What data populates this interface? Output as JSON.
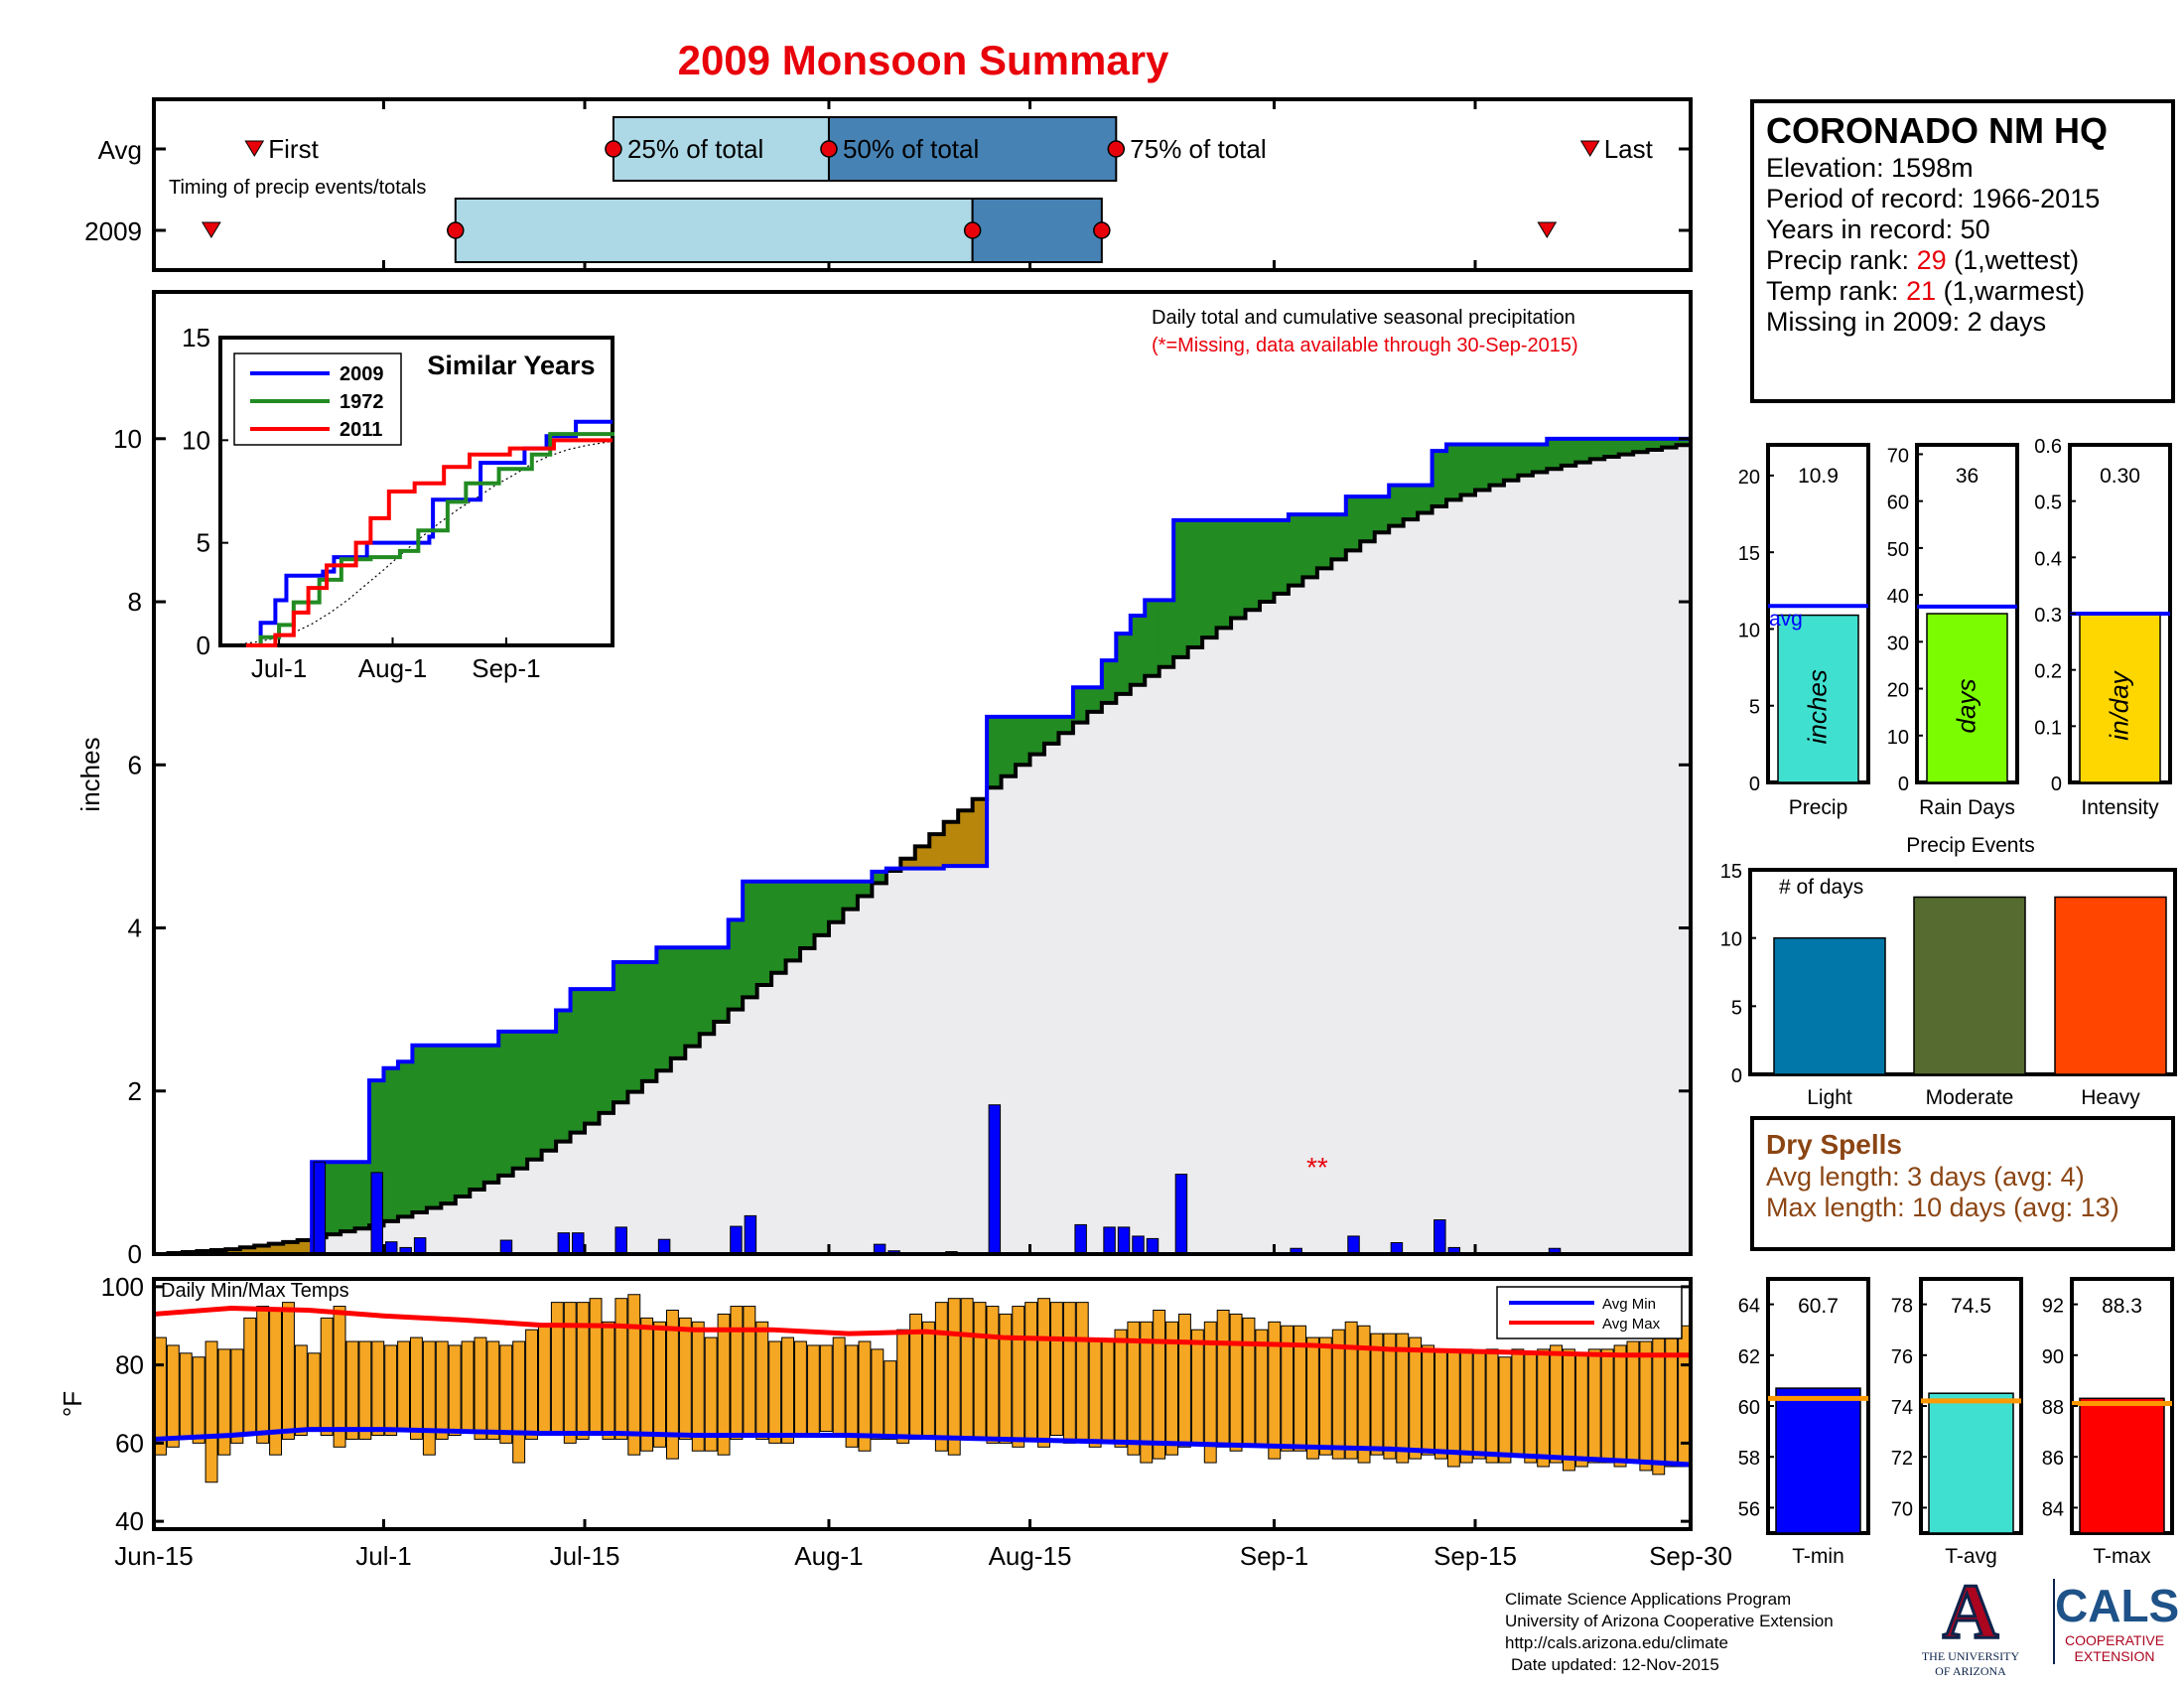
{
  "title": "2009 Monsoon Summary",
  "colors": {
    "title": "#e8000b",
    "precip_bar": "#0000ff",
    "cum_2009": "#0000ff",
    "cum_avg": "#000000",
    "above_avg": "#228b22",
    "below_avg": "#b8860b",
    "background_area": "#ecebee",
    "temp_bar": "#f5a623",
    "avg_min_line": "#0000ff",
    "avg_max_line": "#ff0000",
    "timing_light": "#add8e6",
    "timing_dark": "#4682b4"
  },
  "station": {
    "name": "CORONADO NM HQ",
    "elevation": "Elevation: 1598m",
    "period": "Period of record: 1966-2015",
    "years": "Years in record: 50",
    "precip_rank_prefix": "Precip rank: ",
    "precip_rank_value": "29",
    "precip_rank_suffix": " (1,wettest)",
    "temp_rank_prefix": "Temp rank: ",
    "temp_rank_value": "21",
    "temp_rank_suffix": " (1,warmest)",
    "missing": "Missing in 2009: 2 days"
  },
  "dry_spells": {
    "title": "Dry Spells",
    "avg_length": "Avg length: 3 days (avg: 4)",
    "max_length": "Max length: 10 days (avg: 13)"
  },
  "footer": {
    "line1": "Climate Science Applications Program",
    "line2": "University of Arizona Cooperative Extension",
    "line3": "http://cals.arizona.edu/climate",
    "line4": "Date updated: 12-Nov-2015"
  },
  "logos": {
    "ua_letter": "A",
    "ua_line1": "THE UNIVERSITY",
    "ua_line2": "OF ARIZONA",
    "cals": "CALS",
    "cals_line1": "COOPERATIVE",
    "cals_line2": "EXTENSION"
  },
  "chart_data": [
    {
      "id": "timing",
      "type": "timeline",
      "title": "Timing of precip events/totals",
      "row_labels": [
        "Avg",
        "2009"
      ],
      "labels": {
        "first": "First",
        "q25": "25% of total",
        "q50": "50% of total",
        "q75": "75% of total",
        "last": "Last"
      },
      "avg": {
        "first": "Jun-22",
        "q25": "Jul-17",
        "q50": "Aug-1",
        "q75": "Aug-21",
        "last": "Sep-23"
      },
      "y2009": {
        "first": "Jun-19",
        "q25": "Jul-6",
        "q50": "Aug-11",
        "q75": "Aug-20",
        "last": "Sep-20"
      }
    },
    {
      "id": "cumulative",
      "type": "area",
      "annotation_title": "Daily total and cumulative seasonal precipitation",
      "annotation_missing": "(*=Missing, data available through 30-Sep-2015)",
      "missing_marker": "**",
      "ylabel": "inches",
      "ylim": [
        0,
        11.8
      ],
      "yticks": [
        0,
        2,
        4,
        6,
        8,
        10
      ],
      "xticks": [
        "Jun-15",
        "Jul-1",
        "Jul-15",
        "Aug-1",
        "Aug-15",
        "Sep-1",
        "Sep-15",
        "Sep-30"
      ],
      "daily_precip": [
        {
          "date": "Jun-26",
          "value": 1.13
        },
        {
          "date": "Jun-30",
          "value": 1.0
        },
        {
          "date": "Jul-1",
          "value": 0.15
        },
        {
          "date": "Jul-2",
          "value": 0.08
        },
        {
          "date": "Jul-3",
          "value": 0.2
        },
        {
          "date": "Jul-9",
          "value": 0.17
        },
        {
          "date": "Jul-13",
          "value": 0.26
        },
        {
          "date": "Jul-14",
          "value": 0.26
        },
        {
          "date": "Jul-17",
          "value": 0.33
        },
        {
          "date": "Jul-20",
          "value": 0.18
        },
        {
          "date": "Jul-25",
          "value": 0.34
        },
        {
          "date": "Jul-26",
          "value": 0.47
        },
        {
          "date": "Aug-4",
          "value": 0.12
        },
        {
          "date": "Aug-5",
          "value": 0.04
        },
        {
          "date": "Aug-9",
          "value": 0.03
        },
        {
          "date": "Aug-12",
          "value": 1.83
        },
        {
          "date": "Aug-18",
          "value": 0.36
        },
        {
          "date": "Aug-20",
          "value": 0.33
        },
        {
          "date": "Aug-21",
          "value": 0.33
        },
        {
          "date": "Aug-22",
          "value": 0.22
        },
        {
          "date": "Aug-23",
          "value": 0.19
        },
        {
          "date": "Aug-25",
          "value": 0.98
        },
        {
          "date": "Sep-2",
          "value": 0.07
        },
        {
          "date": "Sep-6",
          "value": 0.22
        },
        {
          "date": "Sep-9",
          "value": 0.14
        },
        {
          "date": "Sep-12",
          "value": 0.42
        },
        {
          "date": "Sep-13",
          "value": 0.08
        },
        {
          "date": "Sep-20",
          "value": 0.07
        }
      ],
      "missing_dates": [
        "Sep-4",
        "Sep-5"
      ],
      "avg_cumulative": [
        {
          "date": "Jun-15",
          "value": 0.0
        },
        {
          "date": "Jun-20",
          "value": 0.06
        },
        {
          "date": "Jun-25",
          "value": 0.17
        },
        {
          "date": "Jun-30",
          "value": 0.35
        },
        {
          "date": "Jul-5",
          "value": 0.62
        },
        {
          "date": "Jul-10",
          "value": 1.05
        },
        {
          "date": "Jul-15",
          "value": 1.6
        },
        {
          "date": "Jul-20",
          "value": 2.25
        },
        {
          "date": "Jul-25",
          "value": 3.0
        },
        {
          "date": "Jul-30",
          "value": 3.75
        },
        {
          "date": "Aug-4",
          "value": 4.55
        },
        {
          "date": "Aug-9",
          "value": 5.3
        },
        {
          "date": "Aug-14",
          "value": 6.0
        },
        {
          "date": "Aug-19",
          "value": 6.65
        },
        {
          "date": "Aug-24",
          "value": 7.2
        },
        {
          "date": "Aug-29",
          "value": 7.8
        },
        {
          "date": "Sep-3",
          "value": 8.3
        },
        {
          "date": "Sep-8",
          "value": 8.85
        },
        {
          "date": "Sep-13",
          "value": 9.25
        },
        {
          "date": "Sep-18",
          "value": 9.55
        },
        {
          "date": "Sep-23",
          "value": 9.75
        },
        {
          "date": "Sep-30",
          "value": 9.95
        }
      ]
    },
    {
      "id": "similar_years",
      "type": "line",
      "title": "Similar Years",
      "xticks": [
        "Jul-1",
        "Aug-1",
        "Sep-1"
      ],
      "yticks": [
        0,
        5,
        10,
        15
      ],
      "ylim": [
        0,
        15
      ],
      "series": [
        {
          "name": "2009",
          "color": "#0000ff",
          "points": [
            [
              "Jun-22",
              0
            ],
            [
              "Jun-26",
              1.1
            ],
            [
              "Jun-30",
              2.2
            ],
            [
              "Jul-3",
              3.4
            ],
            [
              "Jul-13",
              3.6
            ],
            [
              "Jul-16",
              4.3
            ],
            [
              "Jul-25",
              5.0
            ],
            [
              "Aug-11",
              5.3
            ],
            [
              "Aug-12",
              7.1
            ],
            [
              "Aug-25",
              8.9
            ],
            [
              "Sep-6",
              9.6
            ],
            [
              "Sep-12",
              10.2
            ],
            [
              "Sep-20",
              10.9
            ],
            [
              "Sep-30",
              10.9
            ]
          ]
        },
        {
          "name": "1972",
          "color": "#228b22",
          "points": [
            [
              "Jun-22",
              0
            ],
            [
              "Jun-26",
              0.4
            ],
            [
              "Jul-1",
              1.0
            ],
            [
              "Jul-5",
              2.1
            ],
            [
              "Jul-12",
              3.2
            ],
            [
              "Jul-18",
              4.2
            ],
            [
              "Jul-26",
              4.3
            ],
            [
              "Aug-3",
              4.6
            ],
            [
              "Aug-8",
              5.6
            ],
            [
              "Aug-16",
              7.0
            ],
            [
              "Aug-21",
              7.9
            ],
            [
              "Aug-30",
              8.6
            ],
            [
              "Sep-8",
              9.3
            ],
            [
              "Sep-13",
              10.3
            ],
            [
              "Sep-30",
              10.4
            ]
          ]
        },
        {
          "name": "2011",
          "color": "#ff0000",
          "points": [
            [
              "Jun-22",
              0
            ],
            [
              "Jun-30",
              0.5
            ],
            [
              "Jul-5",
              1.6
            ],
            [
              "Jul-9",
              2.8
            ],
            [
              "Jul-14",
              3.9
            ],
            [
              "Jul-22",
              5.0
            ],
            [
              "Jul-26",
              6.2
            ],
            [
              "Jul-31",
              7.5
            ],
            [
              "Aug-7",
              7.9
            ],
            [
              "Aug-15",
              8.7
            ],
            [
              "Aug-22",
              9.3
            ],
            [
              "Sep-2",
              9.6
            ],
            [
              "Sep-14",
              10.0
            ],
            [
              "Sep-30",
              10.0
            ]
          ]
        }
      ]
    },
    {
      "id": "stat_bars",
      "type": "bar",
      "avg_label": "avg",
      "panels": [
        {
          "label": "Precip",
          "unit": "inches",
          "value": 10.9,
          "display": "10.9",
          "avg": 11.5,
          "ylim": [
            0,
            22
          ],
          "yticks": [
            0,
            5,
            10,
            15,
            20
          ],
          "color": "#40e0d0"
        },
        {
          "label": "Rain Days",
          "unit": "days",
          "value": 36,
          "display": "36",
          "avg": 37.5,
          "ylim": [
            0,
            72
          ],
          "yticks": [
            0,
            10,
            20,
            30,
            40,
            50,
            60,
            70
          ],
          "color": "#7cfc00"
        },
        {
          "label": "Intensity",
          "unit": "in/day",
          "value": 0.3,
          "display": "0.30",
          "avg": 0.3,
          "ylim": [
            0,
            0.6
          ],
          "yticks": [
            0,
            0.1,
            0.2,
            0.3,
            0.4,
            0.5,
            0.6
          ],
          "color": "#ffd700"
        }
      ]
    },
    {
      "id": "precip_events",
      "type": "bar",
      "title": "Precip Events",
      "ylabel": "# of days",
      "ylim": [
        0,
        15
      ],
      "yticks": [
        0,
        5,
        10,
        15
      ],
      "categories": [
        "Light",
        "Moderate",
        "Heavy"
      ],
      "values": [
        10,
        13,
        13
      ],
      "colors": [
        "#0077a8",
        "#556b2f",
        "#ff4500"
      ]
    },
    {
      "id": "daily_temps",
      "type": "bar",
      "title": "Daily Min/Max Temps",
      "ylabel": "°F",
      "ylim": [
        38,
        102
      ],
      "yticks": [
        40,
        60,
        80,
        100
      ],
      "legend": [
        {
          "name": "Avg Min",
          "color": "#0000ff"
        },
        {
          "name": "Avg Max",
          "color": "#ff0000"
        }
      ],
      "tmax_1": [
        87,
        85,
        83,
        82,
        86,
        84,
        84,
        92,
        95,
        94,
        96,
        85,
        83,
        92,
        95,
        86,
        86,
        86,
        85,
        86,
        87,
        86,
        86,
        85,
        86,
        87,
        86,
        85,
        86,
        89,
        90,
        96,
        96,
        96,
        97,
        91,
        97,
        98,
        92,
        91,
        94,
        92,
        91,
        87,
        93,
        95,
        95,
        91,
        86,
        87,
        86,
        85,
        85,
        87,
        85,
        86,
        84,
        81,
        89,
        93
      ],
      "tmax_2": [
        91,
        96,
        97,
        97,
        96,
        95,
        93,
        95,
        96,
        97,
        96,
        96,
        96,
        86,
        86,
        89,
        91,
        91,
        94,
        91,
        93,
        89,
        91,
        94,
        93,
        92,
        89,
        91,
        90,
        90,
        87,
        87,
        89,
        91,
        90,
        88,
        88,
        88,
        87,
        85,
        84,
        84,
        84,
        83,
        84,
        82,
        84,
        83,
        84,
        85,
        84,
        83,
        84,
        84,
        85,
        86,
        86,
        88,
        88,
        90
      ],
      "tmin_1": [
        57,
        59,
        61,
        60,
        50,
        57,
        60,
        62,
        60,
        57,
        61,
        62,
        63,
        62,
        59,
        61,
        61,
        62,
        62,
        63,
        61,
        57,
        61,
        62,
        63,
        61,
        61,
        60,
        55,
        61,
        62,
        63,
        60,
        61,
        62,
        61,
        61,
        57,
        58,
        59,
        56,
        61,
        58,
        58,
        57,
        61,
        62,
        61,
        60,
        60,
        62,
        62,
        63,
        62,
        59,
        58,
        61,
        61,
        60,
        61
      ],
      "tmin_2": [
        62,
        58,
        57,
        61,
        61,
        60,
        60,
        59,
        61,
        59,
        62,
        60,
        61,
        59,
        60,
        59,
        57,
        55,
        56,
        57,
        59,
        60,
        55,
        59,
        58,
        59,
        59,
        56,
        58,
        58,
        56,
        57,
        56,
        56,
        55,
        57,
        56,
        55,
        56,
        57,
        56,
        54,
        55,
        56,
        55,
        55,
        57,
        55,
        54,
        55,
        53,
        54,
        55,
        55,
        54,
        55,
        53,
        52,
        54,
        54
      ],
      "avg_max_curve": [
        [
          0,
          93
        ],
        [
          10,
          94.5
        ],
        [
          20,
          94
        ],
        [
          30,
          92.5
        ],
        [
          40,
          91.5
        ],
        [
          50,
          90.2
        ],
        [
          60,
          90
        ],
        [
          70,
          89
        ],
        [
          80,
          89
        ],
        [
          90,
          88
        ],
        [
          100,
          88.5
        ],
        [
          110,
          87
        ],
        [
          120,
          86.5
        ],
        [
          130,
          86
        ],
        [
          140,
          85.5
        ],
        [
          150,
          85
        ],
        [
          160,
          84
        ],
        [
          170,
          83.5
        ],
        [
          180,
          83
        ],
        [
          190,
          82.5
        ],
        [
          199,
          82.5
        ]
      ],
      "avg_min_curve": [
        [
          0,
          61
        ],
        [
          10,
          62
        ],
        [
          20,
          63.5
        ],
        [
          30,
          63.5
        ],
        [
          40,
          63
        ],
        [
          50,
          62.5
        ],
        [
          60,
          62.5
        ],
        [
          70,
          62
        ],
        [
          80,
          62
        ],
        [
          90,
          62
        ],
        [
          100,
          61.5
        ],
        [
          110,
          61
        ],
        [
          120,
          60.5
        ],
        [
          130,
          60
        ],
        [
          140,
          59.5
        ],
        [
          150,
          59
        ],
        [
          160,
          58.5
        ],
        [
          170,
          57.5
        ],
        [
          180,
          56.5
        ],
        [
          190,
          55.5
        ],
        [
          199,
          54.5
        ]
      ]
    },
    {
      "id": "temp_stats",
      "type": "bar",
      "panels": [
        {
          "label": "T-min",
          "value": 60.7,
          "display": "60.7",
          "avg": 60.3,
          "ylim": [
            55,
            65
          ],
          "yticks": [
            56,
            58,
            60,
            62,
            64
          ],
          "color": "#0000ff"
        },
        {
          "label": "T-avg",
          "value": 74.5,
          "display": "74.5",
          "avg": 74.2,
          "ylim": [
            69,
            79
          ],
          "yticks": [
            70,
            72,
            74,
            76,
            78
          ],
          "color": "#40e0d0"
        },
        {
          "label": "T-max",
          "value": 88.3,
          "display": "88.3",
          "avg": 88.1,
          "ylim": [
            83,
            93
          ],
          "yticks": [
            84,
            86,
            88,
            90,
            92
          ],
          "color": "#ff0000"
        }
      ]
    }
  ]
}
